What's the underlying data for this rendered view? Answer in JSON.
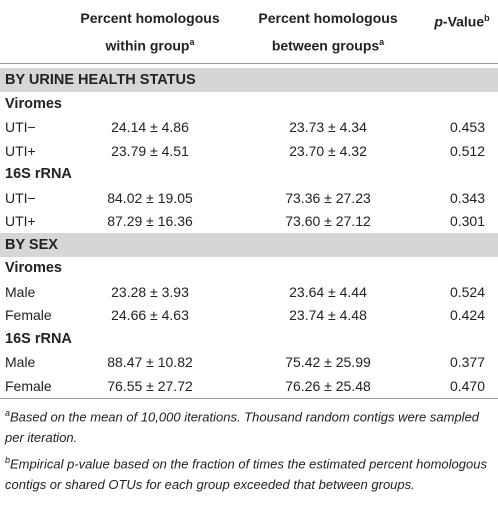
{
  "header": {
    "columns": [
      {
        "lines": [
          "Percent homologous",
          "within group"
        ],
        "sup": "a"
      },
      {
        "lines": [
          "Percent homologous",
          "between groups"
        ],
        "sup": "a"
      },
      {
        "italic": "p",
        "text": "-Value",
        "sup": "b"
      }
    ]
  },
  "sections": [
    {
      "title": "BY URINE HEALTH STATUS",
      "groups": [
        {
          "title": "Viromes",
          "rows": [
            [
              "UTI−",
              "24.14 ± 4.86",
              "23.73 ± 4.34",
              "0.453"
            ],
            [
              "UTI+",
              "23.79 ± 4.51",
              "23.70 ± 4.32",
              "0.512"
            ]
          ]
        },
        {
          "title": "16S rRNA",
          "rows": [
            [
              "UTI−",
              "84.02 ± 19.05",
              "73.36 ± 27.23",
              "0.343"
            ],
            [
              "UTI+",
              "87.29 ± 16.36",
              "73.60 ± 27.12",
              "0.301"
            ]
          ]
        }
      ]
    },
    {
      "title": "BY SEX",
      "groups": [
        {
          "title": "Viromes",
          "rows": [
            [
              "Male",
              "23.28 ± 3.93",
              "23.64 ± 4.44",
              "0.524"
            ],
            [
              "Female",
              "24.66 ± 4.63",
              "23.74 ± 4.48",
              "0.424"
            ]
          ]
        },
        {
          "title": "16S rRNA",
          "rows": [
            [
              "Male",
              "88.47 ± 10.82",
              "75.42 ± 25.99",
              "0.377"
            ],
            [
              "Female",
              "76.55 ± 27.72",
              "76.26 ± 25.48",
              "0.470"
            ]
          ]
        }
      ]
    }
  ],
  "footnotes": [
    {
      "mark": "a",
      "text": "Based on the mean of 10,000 iterations. Thousand random contigs were sampled per iteration."
    },
    {
      "mark": "b",
      "text": "Empirical p-value based on the fraction of times the estimated percent homologous contigs or shared OTUs for each group exceeded that between groups."
    }
  ]
}
